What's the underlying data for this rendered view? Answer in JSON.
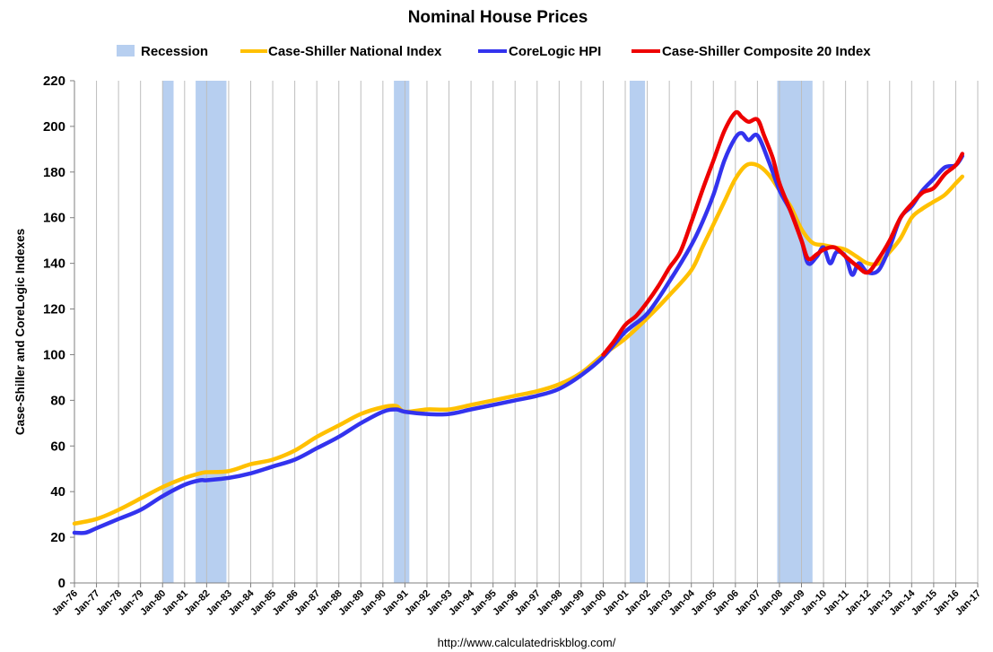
{
  "chart_data": {
    "type": "line",
    "title": "Nominal House Prices",
    "ylabel": "Case-Shiller and CoreLogic Indexes",
    "xlabel": "",
    "ylim": [
      0,
      220
    ],
    "y_ticks": [
      0,
      20,
      40,
      60,
      80,
      100,
      120,
      140,
      160,
      180,
      200,
      220
    ],
    "x_range": [
      1976,
      2017
    ],
    "x_tick_labels": [
      "Jan-76",
      "Jan-77",
      "Jan-78",
      "Jan-79",
      "Jan-80",
      "Jan-81",
      "Jan-82",
      "Jan-83",
      "Jan-84",
      "Jan-85",
      "Jan-86",
      "Jan-87",
      "Jan-88",
      "Jan-89",
      "Jan-90",
      "Jan-91",
      "Jan-92",
      "Jan-93",
      "Jan-94",
      "Jan-95",
      "Jan-96",
      "Jan-97",
      "Jan-98",
      "Jan-99",
      "Jan-00",
      "Jan-01",
      "Jan-02",
      "Jan-03",
      "Jan-04",
      "Jan-05",
      "Jan-06",
      "Jan-07",
      "Jan-08",
      "Jan-09",
      "Jan-10",
      "Jan-11",
      "Jan-12",
      "Jan-13",
      "Jan-14",
      "Jan-15",
      "Jan-16",
      "Jan-17"
    ],
    "grid": "vertical",
    "legend_position": "top",
    "source": "http://www.calculatedriskblog.com/",
    "recession": {
      "name": "Recession",
      "color": "#b7cff0",
      "periods": [
        [
          1980.0,
          1980.5
        ],
        [
          1981.5,
          1982.9
        ],
        [
          1990.5,
          1991.2
        ],
        [
          2001.2,
          2001.9
        ],
        [
          2007.9,
          2009.5
        ]
      ]
    },
    "series": [
      {
        "name": "Case-Shiller National Index",
        "color": "#ffc000",
        "x": [
          1976,
          1977,
          1978,
          1979,
          1980,
          1981,
          1981.7,
          1982,
          1983,
          1984,
          1985,
          1986,
          1987,
          1988,
          1989,
          1990,
          1990.6,
          1991,
          1992,
          1993,
          1994,
          1995,
          1996,
          1997,
          1998,
          1999,
          2000,
          2001,
          2002,
          2003,
          2004,
          2004.5,
          2005,
          2005.5,
          2006,
          2006.5,
          2007,
          2007.5,
          2008,
          2008.5,
          2009,
          2009.5,
          2010,
          2010.5,
          2011,
          2011.5,
          2012,
          2012.5,
          2013,
          2013.5,
          2014,
          2014.5,
          2015,
          2015.5,
          2016,
          2016.3
        ],
        "y": [
          26,
          28,
          32,
          37,
          42,
          46,
          48,
          48.5,
          49,
          52,
          54,
          58,
          64,
          69,
          74,
          77,
          77.5,
          75,
          76,
          76,
          78,
          80,
          82,
          84,
          87,
          92,
          100,
          107,
          116,
          126,
          137,
          147,
          157,
          167,
          177,
          183,
          183,
          179,
          172,
          165,
          155,
          149,
          148,
          147,
          146,
          143,
          140,
          140,
          145,
          151,
          160,
          164,
          167,
          170,
          175,
          178
        ]
      },
      {
        "name": "CoreLogic HPI",
        "color": "#3333ee",
        "x": [
          1976,
          1976.5,
          1977,
          1978,
          1979,
          1980,
          1981,
          1981.7,
          1982,
          1983,
          1984,
          1985,
          1986,
          1987,
          1988,
          1989,
          1990,
          1990.6,
          1991,
          1992,
          1993,
          1994,
          1995,
          1996,
          1997,
          1998,
          1999,
          2000,
          2001,
          2002,
          2003,
          2004,
          2004.5,
          2005,
          2005.5,
          2006,
          2006.3,
          2006.6,
          2007,
          2007.5,
          2008,
          2008.5,
          2009,
          2009.3,
          2009.7,
          2010,
          2010.3,
          2010.6,
          2011,
          2011.3,
          2011.6,
          2012,
          2012.5,
          2013,
          2013.5,
          2014,
          2014.5,
          2015,
          2015.5,
          2016,
          2016.3
        ],
        "y": [
          22,
          22,
          24,
          28,
          32,
          38,
          43,
          45,
          45,
          46,
          48,
          51,
          54,
          59,
          64,
          70,
          75,
          76,
          75,
          74,
          74,
          76,
          78,
          80,
          82,
          85,
          91,
          99,
          110,
          118,
          132,
          148,
          158,
          170,
          185,
          195,
          197,
          194,
          196,
          185,
          172,
          163,
          150,
          140,
          143,
          147,
          140,
          145,
          143,
          135,
          140,
          136,
          137,
          147,
          160,
          165,
          172,
          177,
          182,
          183,
          187
        ]
      },
      {
        "name": "Case-Shiller Composite 20 Index",
        "color": "#ee0000",
        "x": [
          2000,
          2000.5,
          2001,
          2001.5,
          2002,
          2002.5,
          2003,
          2003.5,
          2004,
          2004.5,
          2005,
          2005.5,
          2006,
          2006.3,
          2006.6,
          2007,
          2007.3,
          2007.7,
          2008,
          2008.5,
          2009,
          2009.3,
          2009.7,
          2010,
          2010.5,
          2011,
          2011.5,
          2012,
          2012.5,
          2013,
          2013.5,
          2014,
          2014.5,
          2015,
          2015.5,
          2016,
          2016.3
        ],
        "y": [
          100,
          106,
          113,
          117,
          123,
          130,
          138,
          145,
          158,
          172,
          185,
          198,
          206,
          204,
          202,
          203,
          196,
          186,
          175,
          163,
          150,
          142,
          144,
          146,
          147,
          143,
          139,
          136,
          142,
          150,
          160,
          166,
          171,
          173,
          179,
          183,
          188
        ]
      }
    ]
  }
}
